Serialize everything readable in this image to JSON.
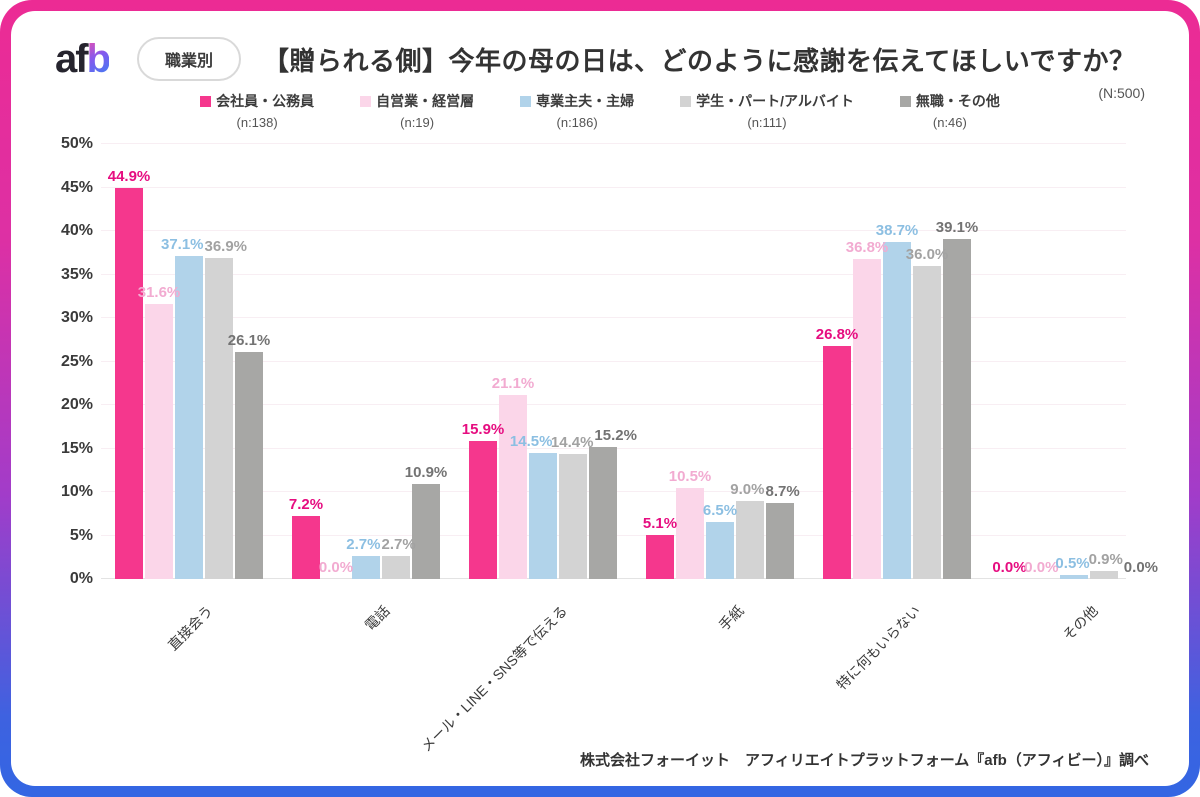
{
  "header": {
    "logo_prefix": "af",
    "logo_suffix": "b",
    "badge": "職業別",
    "title": "【贈られる側】今年の母の日は、どのように感謝を伝えてほしいですか？",
    "sample_size": "(N:500)"
  },
  "chart_data": {
    "type": "bar",
    "title": "【贈られる側】今年の母の日は、どのように感謝を伝えてほしいですか？",
    "categories": [
      "直接会う",
      "電話",
      "メール・LINE・SNS等で伝える",
      "手紙",
      "特に何もいらない",
      "その他"
    ],
    "series": [
      {
        "name": "会社員・公務員",
        "n_label": "(n:138)",
        "color": "#f5378d",
        "label_color": "#e60d80",
        "values": [
          44.9,
          7.2,
          15.9,
          5.1,
          26.8,
          0.0
        ]
      },
      {
        "name": "自営業・経営層",
        "n_label": "(n:19)",
        "color": "#fbd6e9",
        "label_color": "#f2abd1",
        "values": [
          31.6,
          0.0,
          21.1,
          10.5,
          36.8,
          0.0
        ]
      },
      {
        "name": "専業主夫・主婦",
        "n_label": "(n:186)",
        "color": "#b1d3ea",
        "label_color": "#8cbfe2",
        "values": [
          37.1,
          2.7,
          14.5,
          6.5,
          38.7,
          0.5
        ]
      },
      {
        "name": "学生・パート/アルバイト",
        "n_label": "(n:111)",
        "color": "#d3d3d3",
        "label_color": "#a2a2a2",
        "values": [
          36.9,
          2.7,
          14.4,
          9.0,
          36.0,
          0.9
        ]
      },
      {
        "name": "無職・その他",
        "n_label": "(n:46)",
        "color": "#a7a7a5",
        "label_color": "#737373",
        "values": [
          26.1,
          10.9,
          15.2,
          8.7,
          39.1,
          0.0
        ]
      }
    ],
    "y_ticks": [
      "0%",
      "5%",
      "10%",
      "15%",
      "20%",
      "25%",
      "30%",
      "35%",
      "40%",
      "45%",
      "50%"
    ],
    "ylim": [
      0,
      50
    ],
    "value_suffix": "%",
    "grid": true,
    "legend_position": "top"
  },
  "footer": {
    "source": "株式会社フォーイット　アフィリエイトプラットフォーム『afb（アフィビー）』調べ"
  }
}
